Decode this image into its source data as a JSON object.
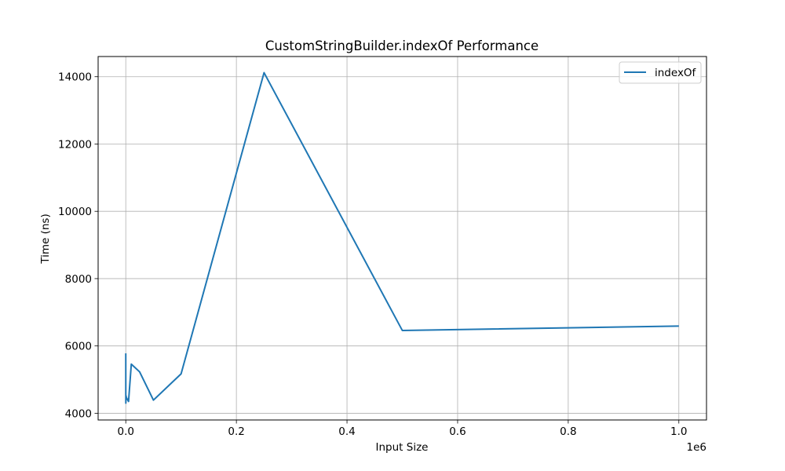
{
  "chart_data": {
    "type": "line",
    "title": "CustomStringBuilder.indexOf Performance",
    "xlabel": "Input Size",
    "ylabel": "Time (ns)",
    "x_offset_label": "1e6",
    "xlim": [
      -50000,
      1050000
    ],
    "ylim": [
      3800,
      14600
    ],
    "x_ticks": [
      0,
      200000,
      400000,
      600000,
      800000,
      1000000
    ],
    "x_tick_labels": [
      "0.0",
      "0.2",
      "0.4",
      "0.6",
      "0.8",
      "1.0"
    ],
    "y_ticks": [
      4000,
      6000,
      8000,
      10000,
      12000,
      14000
    ],
    "y_tick_labels": [
      "4000",
      "6000",
      "8000",
      "10000",
      "12000",
      "14000"
    ],
    "grid": true,
    "legend_position": "upper right",
    "series": [
      {
        "name": "indexOf",
        "color": "#1f77b4",
        "x": [
          10,
          50,
          100,
          500,
          1000,
          5000,
          10000,
          25000,
          50000,
          100000,
          250000,
          500000,
          1000000
        ],
        "y": [
          5780,
          4520,
          4300,
          4520,
          4470,
          4350,
          5460,
          5230,
          4390,
          5170,
          14120,
          6460,
          6590
        ]
      }
    ]
  }
}
